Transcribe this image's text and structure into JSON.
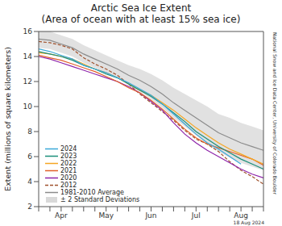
{
  "chart_data": {
    "type": "line",
    "title": "Arctic Sea Ice Extent",
    "subtitle": "(Area of ocean with at least 15% sea ice)",
    "y_label": "Extent (millions of square kilometers)",
    "annotations": [
      "18 Aug 2024",
      "National Snow and Ice Data Center, University of Colorado Boulder"
    ],
    "categories": [
      null,
      null,
      "Apr",
      null,
      null,
      null,
      "May",
      null,
      null,
      null,
      "Jun",
      null,
      null,
      null,
      "Jul",
      null,
      null,
      null,
      "Aug",
      null,
      null
    ],
    "ylim": [
      2,
      16
    ],
    "yticks": [
      2,
      4,
      6,
      8,
      10,
      12,
      14,
      16
    ],
    "grid": false,
    "legend": "lower left",
    "series": [
      {
        "name": "± 2 Standard Deviations",
        "type": "band",
        "color": "#d9d9d9",
        "values": [
          [
            14.7,
            16.1
          ],
          [
            14.6,
            16.0
          ],
          [
            14.3,
            15.7
          ],
          [
            14.0,
            15.4
          ],
          [
            13.5,
            14.9
          ],
          [
            13.1,
            14.5
          ],
          [
            12.7,
            14.1
          ],
          [
            12.3,
            13.7
          ],
          [
            11.7,
            13.3
          ],
          [
            11.2,
            13.0
          ],
          [
            10.6,
            12.6
          ],
          [
            9.9,
            12.1
          ],
          [
            9.1,
            11.5
          ],
          [
            8.4,
            11.0
          ],
          [
            7.7,
            10.5
          ],
          [
            7.0,
            10.0
          ],
          [
            6.4,
            9.4
          ],
          [
            5.9,
            9.1
          ],
          [
            5.5,
            8.7
          ],
          [
            5.2,
            8.4
          ],
          [
            4.9,
            8.1
          ]
        ]
      },
      {
        "name": "1981-2010 Average",
        "type": "line",
        "color": "#8c8c8c",
        "line_style": "solid",
        "values": [
          15.4,
          15.3,
          15.0,
          14.7,
          14.2,
          13.8,
          13.4,
          13.0,
          12.5,
          12.1,
          11.6,
          11.0,
          10.3,
          9.7,
          9.1,
          8.5,
          7.9,
          7.5,
          7.1,
          6.8,
          6.5
        ]
      },
      {
        "name": "2012",
        "type": "line",
        "color": "#a0522d",
        "line_style": "dashed",
        "values": [
          15.2,
          15.1,
          14.9,
          14.6,
          13.9,
          13.4,
          13.0,
          12.5,
          11.8,
          11.0,
          10.3,
          9.6,
          8.9,
          8.1,
          7.4,
          7.0,
          6.4,
          5.6,
          4.9,
          4.4,
          3.8
        ]
      },
      {
        "name": "2020",
        "type": "line",
        "color": "#8e24aa",
        "line_style": "solid",
        "values": [
          14.0,
          13.8,
          13.5,
          13.2,
          12.9,
          12.6,
          12.3,
          12.0,
          11.6,
          11.1,
          10.4,
          9.7,
          8.7,
          7.8,
          7.1,
          6.5,
          6.0,
          5.5,
          5.0,
          4.6,
          4.3
        ]
      },
      {
        "name": "2021",
        "type": "line",
        "color": "#e0602a",
        "line_style": "solid",
        "values": [
          14.1,
          13.9,
          13.7,
          13.4,
          13.1,
          12.8,
          12.4,
          12.0,
          11.5,
          11.1,
          10.5,
          9.8,
          9.0,
          8.2,
          7.5,
          7.0,
          6.7,
          6.4,
          6.1,
          5.8,
          5.3
        ]
      },
      {
        "name": "2022",
        "type": "line",
        "color": "#f5a623",
        "line_style": "solid",
        "values": [
          14.3,
          14.2,
          14.0,
          13.8,
          13.4,
          13.0,
          12.7,
          12.3,
          11.8,
          11.3,
          10.9,
          10.3,
          9.7,
          9.0,
          8.3,
          7.7,
          7.1,
          6.6,
          6.2,
          5.8,
          5.4
        ]
      },
      {
        "name": "2023",
        "type": "line",
        "color": "#1b8f7a",
        "line_style": "solid",
        "values": [
          14.4,
          14.2,
          14.0,
          13.7,
          13.3,
          13.0,
          12.6,
          12.3,
          11.8,
          11.3,
          10.8,
          10.2,
          9.5,
          8.8,
          8.0,
          7.4,
          6.8,
          6.3,
          5.8,
          5.4,
          5.0
        ]
      },
      {
        "name": "2024",
        "type": "line",
        "color": "#3aa8d8",
        "line_style": "solid",
        "values": [
          14.6,
          14.4,
          14.1,
          13.8,
          13.3,
          13.0,
          12.7,
          12.3,
          11.9,
          11.4,
          10.9,
          10.2,
          9.4,
          8.6,
          7.8,
          7.1,
          6.6,
          6.0,
          5.4,
          null,
          null
        ]
      }
    ]
  }
}
